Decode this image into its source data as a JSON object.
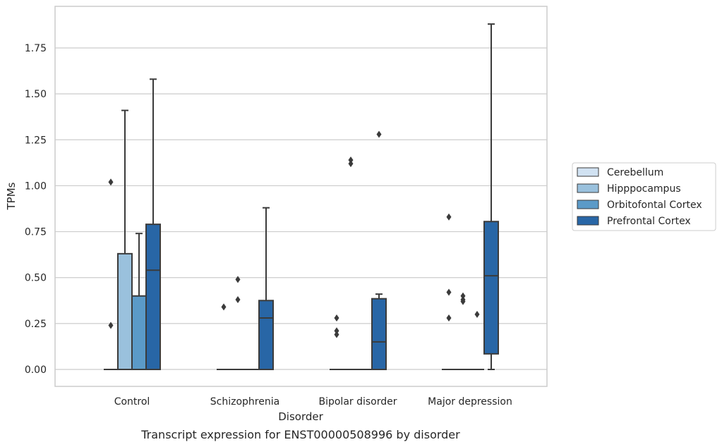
{
  "chart_data": {
    "type": "box",
    "caption": "Transcript expression for ENST00000508996 by disorder",
    "xlabel": "Disorder",
    "ylabel": "TPMs",
    "ylim": [
      -0.09,
      1.98
    ],
    "yticks": [
      "0.00",
      "0.25",
      "0.50",
      "0.75",
      "1.00",
      "1.25",
      "1.50",
      "1.75"
    ],
    "grid": "horizontal",
    "legend_position": "right",
    "categories": [
      "Control",
      "Schizophrenia",
      "Bipolar disorder",
      "Major depression"
    ],
    "series": [
      {
        "name": "Cerebellum",
        "color": "#d1e2f2",
        "boxes": [
          {
            "q1": 0,
            "median": 0,
            "q3": 0,
            "whisker_low": 0,
            "whisker_high": 0,
            "outliers": [
              0.24,
              1.02
            ]
          },
          {
            "q1": 0,
            "median": 0,
            "q3": 0,
            "whisker_low": 0,
            "whisker_high": 0,
            "outliers": [
              0.34
            ]
          },
          {
            "q1": 0,
            "median": 0,
            "q3": 0,
            "whisker_low": 0,
            "whisker_high": 0,
            "outliers": [
              0.19,
              0.21,
              0.28
            ]
          },
          {
            "q1": 0,
            "median": 0,
            "q3": 0,
            "whisker_low": 0,
            "whisker_high": 0,
            "outliers": [
              0.28,
              0.42,
              0.83
            ]
          }
        ]
      },
      {
        "name": "Hipppocampus",
        "color": "#9ac1dd",
        "boxes": [
          {
            "q1": 0,
            "median": 0,
            "q3": 0.63,
            "whisker_low": 0,
            "whisker_high": 1.41,
            "outliers": []
          },
          {
            "q1": 0,
            "median": 0,
            "q3": 0,
            "whisker_low": 0,
            "whisker_high": 0,
            "outliers": [
              0.38,
              0.49
            ]
          },
          {
            "q1": 0,
            "median": 0,
            "q3": 0,
            "whisker_low": 0,
            "whisker_high": 0,
            "outliers": [
              1.12,
              1.14
            ]
          },
          {
            "q1": 0,
            "median": 0,
            "q3": 0,
            "whisker_low": 0,
            "whisker_high": 0,
            "outliers": [
              0.37,
              0.38,
              0.4
            ]
          }
        ]
      },
      {
        "name": "Orbitofontal Cortex",
        "color": "#5b9ac8",
        "boxes": [
          {
            "q1": 0,
            "median": 0,
            "q3": 0.4,
            "whisker_low": 0,
            "whisker_high": 0.74,
            "outliers": []
          },
          {
            "q1": 0,
            "median": 0,
            "q3": 0,
            "whisker_low": 0,
            "whisker_high": 0,
            "outliers": []
          },
          {
            "q1": 0,
            "median": 0,
            "q3": 0,
            "whisker_low": 0,
            "whisker_high": 0,
            "outliers": []
          },
          {
            "q1": 0,
            "median": 0,
            "q3": 0,
            "whisker_low": 0,
            "whisker_high": 0,
            "outliers": [
              0.3
            ]
          }
        ]
      },
      {
        "name": "Prefrontal Cortex",
        "color": "#2866a6",
        "boxes": [
          {
            "q1": 0,
            "median": 0.54,
            "q3": 0.79,
            "whisker_low": 0,
            "whisker_high": 1.58,
            "outliers": []
          },
          {
            "q1": 0,
            "median": 0.28,
            "q3": 0.375,
            "whisker_low": 0,
            "whisker_high": 0.88,
            "outliers": []
          },
          {
            "q1": 0,
            "median": 0.15,
            "q3": 0.385,
            "whisker_low": 0,
            "whisker_high": 0.41,
            "outliers": [
              1.28
            ]
          },
          {
            "q1": 0.085,
            "median": 0.51,
            "q3": 0.805,
            "whisker_low": 0,
            "whisker_high": 1.88,
            "outliers": []
          }
        ]
      }
    ]
  }
}
